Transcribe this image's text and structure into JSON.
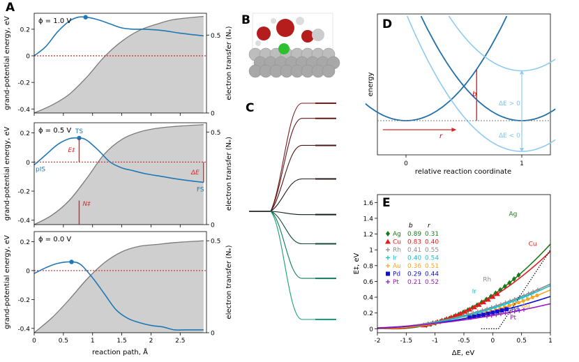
{
  "chart_data": [
    {
      "panel": "A",
      "type": "line",
      "panel_label": "A",
      "xlabel": "reaction path, Å",
      "ylabel": "grand-potential energy, eV",
      "ylabel_right": "electron transfer (Nₑ)",
      "xlim": [
        0,
        2.95
      ],
      "x_ticks": [
        0.0,
        0.5,
        1.0,
        1.5,
        2.0,
        2.5
      ],
      "subplots": [
        {
          "phi_label": "ϕ = 1.0 V",
          "ylim": [
            -0.43,
            0.32
          ],
          "y_ticks": [
            -0.4,
            -0.2,
            0.0,
            0.2
          ],
          "ylim_right": [
            0.0,
            0.64
          ],
          "y2_ticks": [
            0.0,
            0.5
          ],
          "energy": {
            "x": [
              0.0,
              0.2,
              0.4,
              0.6,
              0.75,
              0.9,
              1.1,
              1.3,
              1.5,
              1.7,
              1.9,
              2.2,
              2.5,
              2.9
            ],
            "y": [
              0.0,
              0.07,
              0.18,
              0.26,
              0.29,
              0.29,
              0.27,
              0.24,
              0.21,
              0.2,
              0.2,
              0.19,
              0.17,
              0.15
            ]
          },
          "ts_marker": {
            "x": 0.88,
            "y": 0.29
          },
          "electron_transfer": {
            "x": [
              0.0,
              0.3,
              0.6,
              0.9,
              1.2,
              1.5,
              1.8,
              2.1,
              2.4,
              2.9
            ],
            "y": [
              0.0,
              0.05,
              0.12,
              0.23,
              0.36,
              0.46,
              0.53,
              0.57,
              0.6,
              0.62
            ]
          }
        },
        {
          "phi_label": "ϕ = 0.5 V",
          "ylim": [
            -0.43,
            0.27
          ],
          "y_ticks": [
            -0.4,
            -0.2,
            0.0,
            0.2
          ],
          "ylim_right": [
            0.0,
            0.55
          ],
          "y2_ticks": [
            0.0,
            0.5
          ],
          "energy": {
            "x": [
              0.0,
              0.2,
              0.4,
              0.6,
              0.77,
              0.9,
              1.1,
              1.3,
              1.5,
              1.7,
              1.9,
              2.2,
              2.5,
              2.9
            ],
            "y": [
              -0.02,
              0.05,
              0.12,
              0.16,
              0.165,
              0.15,
              0.08,
              0.0,
              -0.04,
              -0.06,
              -0.08,
              -0.1,
              -0.12,
              -0.14
            ]
          },
          "ts_marker": {
            "x": 0.77,
            "y": 0.165
          },
          "electron_transfer": {
            "x": [
              0.0,
              0.3,
              0.6,
              0.9,
              1.2,
              1.5,
              1.8,
              2.1,
              2.4,
              2.9
            ],
            "y": [
              0.0,
              0.05,
              0.13,
              0.25,
              0.38,
              0.46,
              0.5,
              0.52,
              0.53,
              0.54
            ]
          },
          "annotations": {
            "ts": "TS",
            "pis": "pIS",
            "fs": "FS",
            "barrier": "E‡",
            "delta_e": "ΔE",
            "n_ts": "N‡"
          }
        },
        {
          "phi_label": "ϕ = 0.0 V",
          "ylim": [
            -0.43,
            0.27
          ],
          "y_ticks": [
            -0.4,
            -0.2,
            0.0,
            0.2
          ],
          "ylim_right": [
            0.0,
            0.55
          ],
          "y2_ticks": [
            0.0,
            0.5
          ],
          "energy": {
            "x": [
              0.0,
              0.2,
              0.4,
              0.64,
              0.8,
              1.0,
              1.2,
              1.4,
              1.6,
              1.8,
              2.0,
              2.2,
              2.4,
              2.6,
              2.9
            ],
            "y": [
              -0.02,
              0.02,
              0.05,
              0.06,
              0.04,
              -0.05,
              -0.16,
              -0.27,
              -0.33,
              -0.36,
              -0.38,
              -0.39,
              -0.41,
              -0.41,
              -0.41
            ]
          },
          "ts_marker": {
            "x": 0.64,
            "y": 0.06
          },
          "electron_transfer": {
            "x": [
              0.0,
              0.3,
              0.6,
              0.9,
              1.2,
              1.5,
              1.8,
              2.1,
              2.4,
              2.9
            ],
            "y": [
              0.0,
              0.08,
              0.18,
              0.29,
              0.38,
              0.44,
              0.47,
              0.48,
              0.49,
              0.5
            ]
          }
        }
      ]
    },
    {
      "panel": "B",
      "type": "image",
      "panel_label": "B"
    },
    {
      "panel": "C",
      "type": "line",
      "panel_label": "C",
      "levels": [
        1.0,
        0.86,
        0.61,
        0.3,
        -0.03,
        -0.3,
        -0.62,
        -1.0
      ],
      "colors": [
        "#7a1a1a",
        "#651818",
        "#4c1616",
        "#2a1a1a",
        "#0d1f1a",
        "#0f4a38",
        "#127a5c",
        "#14a078"
      ]
    },
    {
      "panel": "D",
      "type": "line",
      "panel_label": "D",
      "xlabel": "relative reaction coordinate",
      "ylabel": "energy",
      "x_ticks": [
        0,
        1
      ],
      "labels": {
        "b": "b",
        "r": "r",
        "dE_pos": "ΔE > 0",
        "dE_neg": "ΔE < 0"
      }
    },
    {
      "panel": "E",
      "type": "scatter",
      "panel_label": "E",
      "xlabel": "ΔE, eV",
      "ylabel": "E‡, eV",
      "xlim": [
        -2.0,
        1.0
      ],
      "ylim": [
        -0.05,
        1.7
      ],
      "x_ticks": [
        -2.0,
        -1.5,
        -1.0,
        -0.5,
        0.0,
        0.5,
        1.0
      ],
      "y_ticks": [
        0.0,
        0.2,
        0.4,
        0.6,
        0.8,
        1.0,
        1.2,
        1.4,
        1.6
      ],
      "legend_headers": {
        "b": "b",
        "r": "r"
      },
      "series": [
        {
          "name": "Ag",
          "b": "0.89",
          "r": "0.31",
          "color": "#1a7a1a",
          "marker": "diamond",
          "xrange": [
            -1.15,
            0.45
          ]
        },
        {
          "name": "Cu",
          "b": "0.83",
          "r": "0.40",
          "color": "#e41a1c",
          "marker": "triangle",
          "xrange": [
            -1.2,
            0.1
          ]
        },
        {
          "name": "Rh",
          "b": "0.41",
          "r": "0.55",
          "color": "#8c8c8c",
          "marker": "plus",
          "xrange": [
            -0.5,
            0.8
          ]
        },
        {
          "name": "Ir",
          "b": "0.40",
          "r": "0.54",
          "color": "#17becf",
          "marker": "x",
          "xrange": [
            -0.45,
            0.7
          ]
        },
        {
          "name": "Au",
          "b": "0.36",
          "r": "0.51",
          "color": "#f5a623",
          "marker": "star",
          "xrange": [
            -0.35,
            0.8
          ]
        },
        {
          "name": "Pd",
          "b": "0.29",
          "r": "0.44",
          "color": "#1010d0",
          "marker": "square",
          "xrange": [
            -0.4,
            0.3
          ]
        },
        {
          "name": "Pt",
          "b": "0.21",
          "r": "0.52",
          "color": "#9a1ac0",
          "marker": "tri_down",
          "xrange": [
            -0.1,
            0.55
          ]
        }
      ],
      "annotations": [
        "Ag",
        "Cu",
        "Rh",
        "Ir",
        "Au",
        "Pd",
        "Pt"
      ]
    }
  ]
}
